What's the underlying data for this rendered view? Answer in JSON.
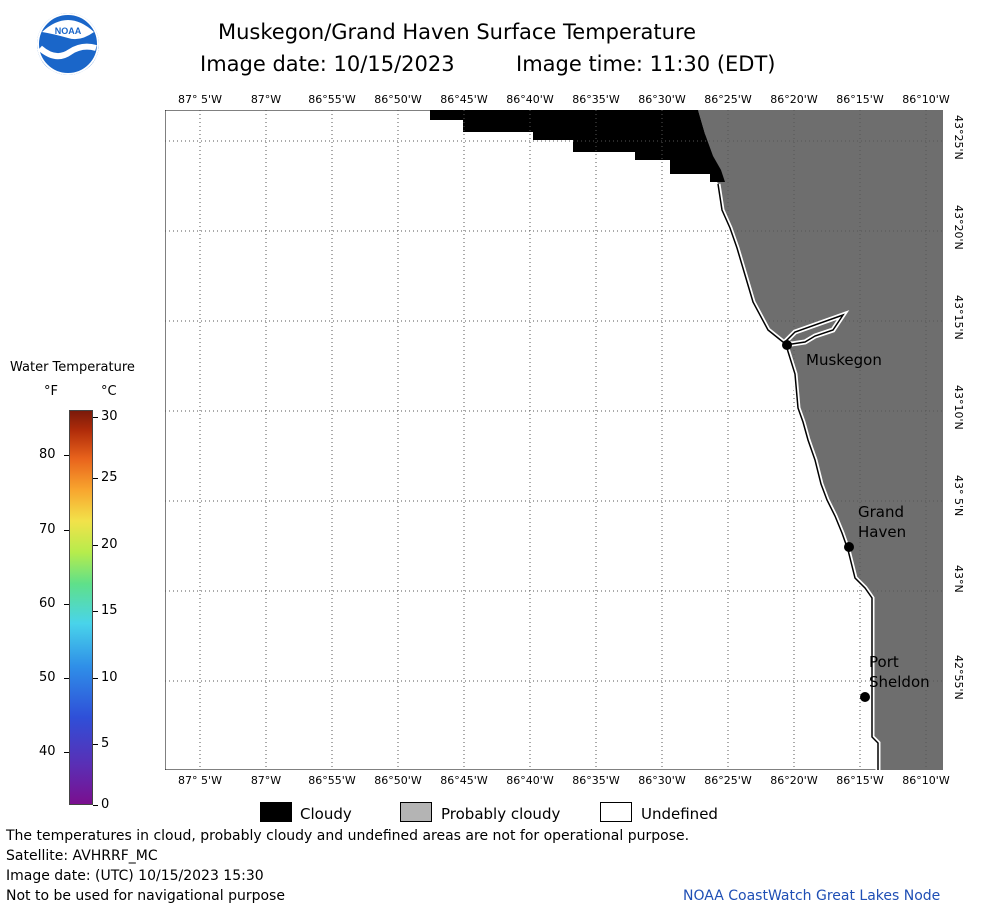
{
  "logo": {
    "text": "NOAA"
  },
  "title": {
    "main": "Muskegon/Grand Haven Surface Temperature",
    "date": "Image date: 10/15/2023",
    "time": "Image time: 11:30 (EDT)"
  },
  "lon_labels": [
    "87° 5'W",
    "87°W",
    "86°55'W",
    "86°50'W",
    "86°45'W",
    "86°40'W",
    "86°35'W",
    "86°30'W",
    "86°25'W",
    "86°20'W",
    "86°15'W",
    "86°10'W"
  ],
  "lat_labels": [
    "43°25'N",
    "43°20'N",
    "43°15'N",
    "43°10'N",
    "43° 5'N",
    "43°N",
    "42°55'N"
  ],
  "colorbar": {
    "title": "Water Temperature",
    "unit_f": "°F",
    "unit_c": "°C",
    "f_ticks": [
      "80",
      "70",
      "60",
      "50",
      "40"
    ],
    "c_ticks": [
      "30",
      "25",
      "20",
      "15",
      "10",
      "5",
      "0"
    ]
  },
  "cities": [
    {
      "name_lines": [
        "Muskegon"
      ]
    },
    {
      "name_lines": [
        "Grand",
        "Haven"
      ]
    },
    {
      "name_lines": [
        "Port",
        "Sheldon"
      ]
    }
  ],
  "legend": {
    "items": [
      {
        "label": "Cloudy",
        "color": "#000000"
      },
      {
        "label": "Probably cloudy",
        "color": "#b4b4b4"
      },
      {
        "label": "Undefined",
        "color": "#ffffff"
      }
    ]
  },
  "footer": {
    "line1": "The temperatures in cloud, probably cloudy and undefined areas are not for operational purpose.",
    "line2": "Satellite: AVHRRF_MC",
    "line3": "Image date: (UTC) 10/15/2023  15:30",
    "line4": "Not to be used for navigational purpose",
    "credit": "NOAA CoastWatch Great Lakes Node"
  },
  "colors": {
    "land": "#6e6e6e",
    "cloud": "#000000",
    "water": "#ffffff",
    "credit": "#1f4fb5"
  }
}
